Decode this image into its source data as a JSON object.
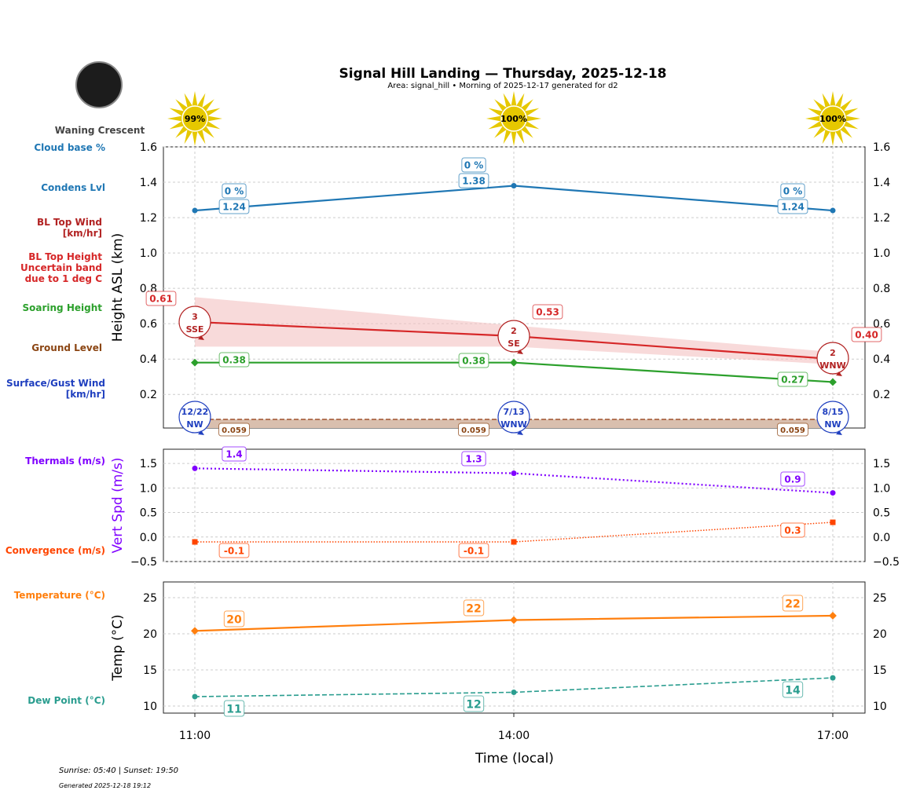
{
  "header": {
    "title": "Signal Hill Landing — Thursday, 2025-12-18",
    "subtitle": "Area: signal_hill • Morning of 2025-12-17 generated for d2",
    "moon_phase": "Waning Crescent"
  },
  "footer": {
    "sun_times": "Sunrise: 05:40 | Sunset: 19:50",
    "generated": "Generated 2025-12-18 19:12"
  },
  "colors": {
    "cloud": "#1f77b4",
    "bl_wind": "#b22222",
    "bl_top": "#d62728",
    "soaring": "#2ca02c",
    "ground": "#8b4513",
    "surface_wind": "#1f3fbf",
    "thermals": "#8000ff",
    "convergence": "#ff4500",
    "temperature": "#ff7f0e",
    "dewpoint": "#2a9d8f",
    "sun": "#e6c800"
  },
  "chart_data": [
    {
      "type": "line",
      "ylabel": "Height ASL (km)",
      "x": [
        "11:00",
        "14:00",
        "17:00"
      ],
      "ylim": [
        0.01,
        1.6
      ],
      "yticks": [
        "0.2",
        "0.4",
        "0.6",
        "0.8",
        "1.0",
        "1.2",
        "1.4",
        "1.6"
      ],
      "grid": true,
      "row_labels": [
        "Cloud base %",
        "Condens Lvl",
        "BL Top Wind\n[km/hr]",
        "BL Top Height\nUncertain band\ndue to 1 deg C",
        "Soaring Height",
        "Ground Level",
        "Surface/Gust Wind\n[km/hr]"
      ],
      "cloud_cover_pct": [
        "99%",
        "100%",
        "100%"
      ],
      "cloud_base_pct": [
        "0 %",
        "0 %",
        "0 %"
      ],
      "condens_lvl": [
        1.24,
        1.38,
        1.24
      ],
      "bl_top": [
        0.61,
        0.53,
        0.4
      ],
      "bl_top_band_low": [
        0.47,
        0.47,
        0.37
      ],
      "bl_top_band_high": [
        0.75,
        0.59,
        0.44
      ],
      "bl_top_wind": [
        {
          "speed": "3",
          "dir": "SSE"
        },
        {
          "speed": "2",
          "dir": "SE"
        },
        {
          "speed": "2",
          "dir": "WNW"
        }
      ],
      "soaring_height": [
        0.38,
        0.38,
        0.27
      ],
      "ground_level": [
        0.059,
        0.059,
        0.059
      ],
      "surface_wind": [
        {
          "speed": "12/22",
          "dir": "NW"
        },
        {
          "speed": "7/13",
          "dir": "WNW"
        },
        {
          "speed": "8/15",
          "dir": "NW"
        }
      ]
    },
    {
      "type": "line",
      "ylabel": "Vert Spd (m/s)",
      "x": [
        "11:00",
        "14:00",
        "17:00"
      ],
      "ylim": [
        -0.5,
        1.79
      ],
      "yticks": [
        "−0.5",
        "0.0",
        "0.5",
        "1.0",
        "1.5"
      ],
      "grid": true,
      "series": [
        {
          "name": "Thermals (m/s)",
          "values": [
            1.4,
            1.3,
            0.9
          ]
        },
        {
          "name": "Convergence (m/s)",
          "values": [
            -0.1,
            -0.1,
            0.3
          ]
        }
      ]
    },
    {
      "type": "line",
      "ylabel": "Temp (°C)",
      "xlabel": "Time (local)",
      "x": [
        "11:00",
        "14:00",
        "17:00"
      ],
      "ylim": [
        9.02,
        27.17
      ],
      "yticks": [
        "10",
        "15",
        "20",
        "25"
      ],
      "grid": true,
      "series": [
        {
          "name": "Temperature (°C)",
          "values": [
            20.4,
            21.9,
            22.5
          ],
          "labels": [
            "20",
            "22",
            "22"
          ]
        },
        {
          "name": "Dew Point (°C)",
          "values": [
            11.3,
            11.9,
            13.9
          ],
          "labels": [
            "11",
            "12",
            "14"
          ]
        }
      ]
    }
  ]
}
